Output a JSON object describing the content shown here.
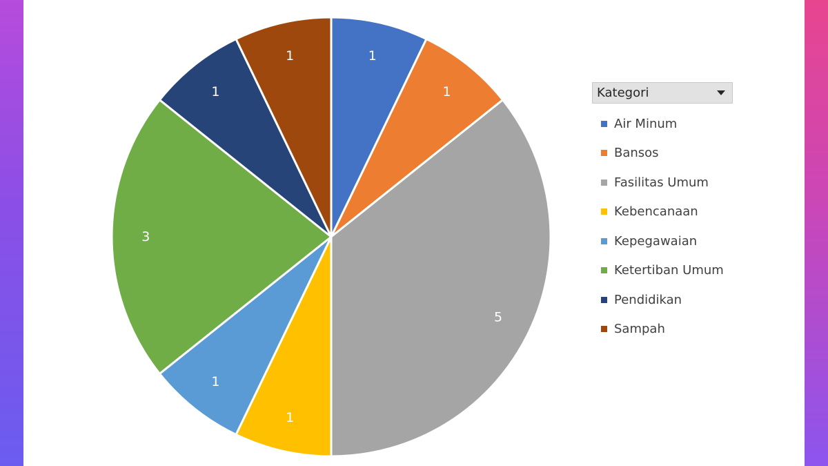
{
  "chart_data": {
    "type": "pie",
    "legend_title": "Kategori",
    "legend_position": "right",
    "categories": [
      "Air Minum",
      "Bansos",
      "Fasilitas Umum",
      "Kebencanaan",
      "Kepegawaian",
      "Ketertiban Umum",
      "Pendidikan",
      "Sampah"
    ],
    "values": [
      1,
      1,
      5,
      1,
      1,
      3,
      1,
      1
    ],
    "data_labels": [
      "1",
      "1",
      "5",
      "1",
      "1",
      "3",
      "1",
      "1"
    ],
    "colors": [
      "#4472c4",
      "#ed7d31",
      "#a5a5a5",
      "#ffc000",
      "#5b9bd5",
      "#70ad47",
      "#264478",
      "#9e480e"
    ]
  },
  "background": {
    "left_gradient": [
      "#b64bdc",
      "#6b5cf0"
    ],
    "right_gradient": [
      "#e8458f",
      "#8c55ee"
    ]
  }
}
